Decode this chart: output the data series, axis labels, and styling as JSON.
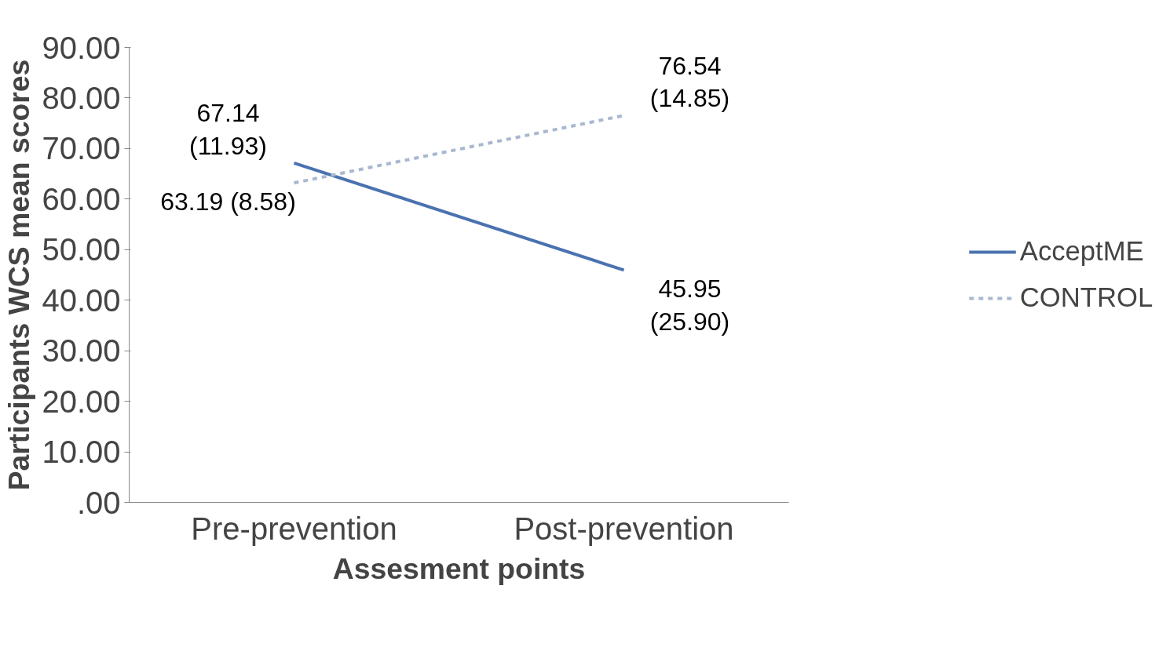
{
  "chart_data": {
    "type": "line",
    "xlabel": "Assesment points",
    "ylabel": "Participants WCS mean scores",
    "categories": [
      "Pre-prevention",
      "Post-prevention"
    ],
    "series": [
      {
        "name": "AcceptME",
        "color": "#4a72b0",
        "line_style": "solid",
        "values": [
          67.14,
          45.95
        ],
        "value_labels": [
          "67.14\n(11.93)",
          "45.95\n(25.90)"
        ]
      },
      {
        "name": "CONTROL",
        "color": "#a8b8d0",
        "line_style": "dashed",
        "values": [
          63.19,
          76.54
        ],
        "value_labels": [
          "63.19 (8.58)",
          "76.54\n(14.85)"
        ]
      }
    ],
    "ylim": [
      0,
      90
    ],
    "yticks": [
      {
        "value": 0,
        "label": ".00"
      },
      {
        "value": 10,
        "label": "10.00"
      },
      {
        "value": 20,
        "label": "20.00"
      },
      {
        "value": 30,
        "label": "30.00"
      },
      {
        "value": 40,
        "label": "40.00"
      },
      {
        "value": 50,
        "label": "50.00"
      },
      {
        "value": 60,
        "label": "60.00"
      },
      {
        "value": 70,
        "label": "70.00"
      },
      {
        "value": 80,
        "label": "80.00"
      },
      {
        "value": 90,
        "label": "90.00"
      }
    ],
    "grid": false,
    "legend": "right",
    "marker": "none"
  }
}
